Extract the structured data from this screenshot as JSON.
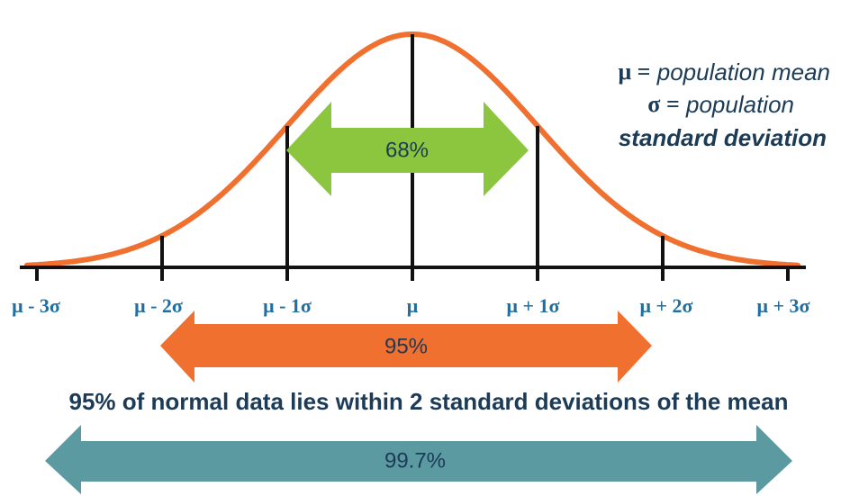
{
  "legend": [
    {
      "symbol": "μ =",
      "text": "population mean"
    },
    {
      "symbol": "σ =",
      "text": "population"
    },
    {
      "text": "standard deviation"
    }
  ],
  "axis_labels": [
    "μ - 3σ",
    "μ - 2σ",
    "μ - 1σ",
    "μ",
    "μ + 1σ",
    "μ + 2σ",
    "μ + 3σ"
  ],
  "arrows": [
    {
      "label": "68%"
    },
    {
      "label": "95%"
    },
    {
      "label": "99.7%"
    }
  ],
  "caption": "95% of normal data lies within 2 standard deviations of the mean"
}
